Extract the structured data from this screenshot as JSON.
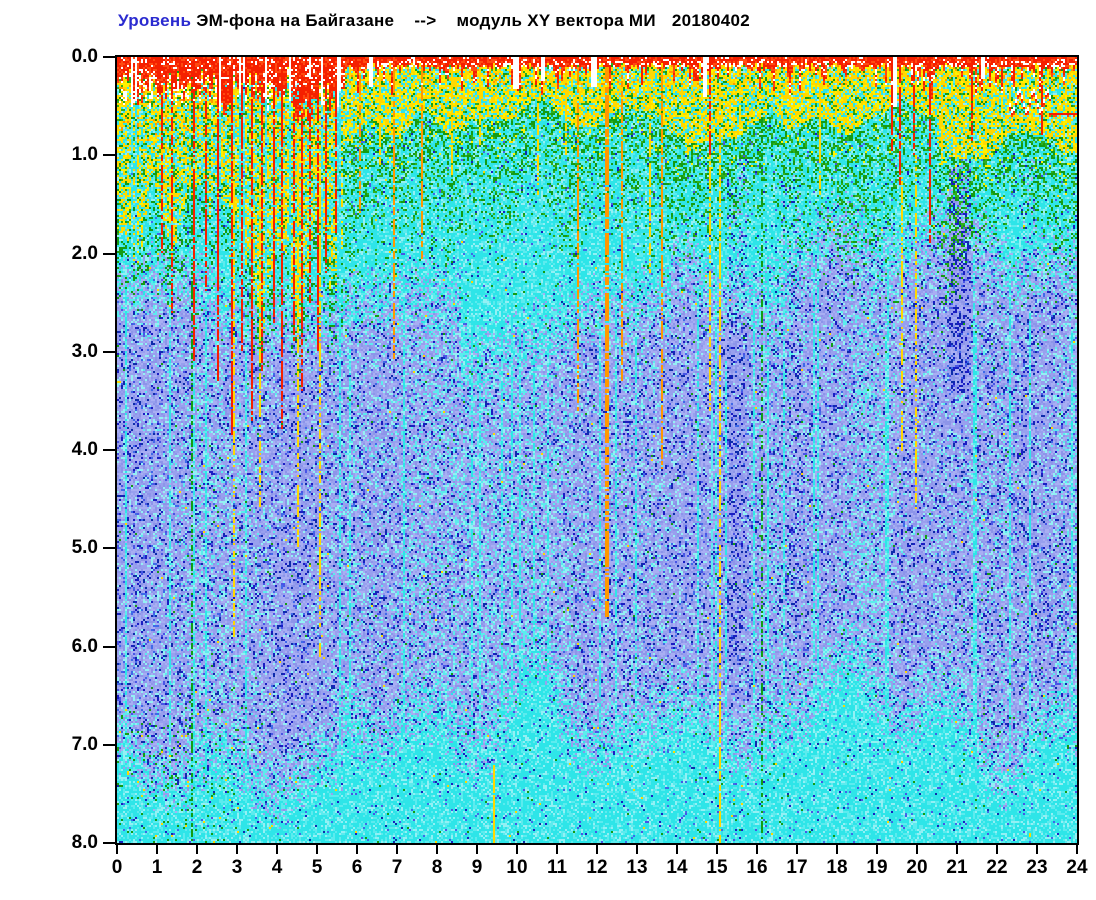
{
  "title": {
    "segments": [
      {
        "text": "Уровень",
        "color": "#2b2bd0"
      },
      {
        "text": "ЭМ-фона на Байгазане",
        "color": "#000000"
      },
      {
        "text": "-->",
        "color": "#000000"
      },
      {
        "text": "модуль XY вектора МИ",
        "color": "#000000"
      },
      {
        "text": "20180402",
        "color": "#000000"
      }
    ],
    "full_text": "Уровень ЭМ-фона на Байгазане --> модуль XY вектора МИ 20180402"
  },
  "axes": {
    "x": {
      "min": 0,
      "max": 24,
      "step": 1,
      "labels": [
        "0",
        "1",
        "2",
        "3",
        "4",
        "5",
        "6",
        "7",
        "8",
        "9",
        "10",
        "11",
        "12",
        "13",
        "14",
        "15",
        "16",
        "17",
        "18",
        "19",
        "20",
        "21",
        "22",
        "23",
        "24"
      ]
    },
    "y": {
      "min": 0,
      "max": 8,
      "step": 1,
      "inverted": true,
      "labels": [
        "0.0",
        "1.0",
        "2.0",
        "3.0",
        "4.0",
        "5.0",
        "6.0",
        "7.0",
        "8.0"
      ]
    }
  },
  "chart_data": {
    "type": "heatmap",
    "title": "Уровень ЭМ-фона на Байгазане --> модуль XY вектора МИ 20180402",
    "date": "20180402",
    "station": "Байгазан",
    "quantity": "модуль XY вектора МИ",
    "xlabel": "",
    "ylabel": "",
    "x_range": [
      0,
      24
    ],
    "y_range": [
      0,
      8
    ],
    "y_inverted": true,
    "grid": false,
    "legend": "none",
    "seed": 20180402,
    "palette": {
      "red": "#f52000",
      "red2": "#ff4a10",
      "orange": "#ff9800",
      "yellow": "#ffd800",
      "yellow2": "#fdf200",
      "green": "#149c14",
      "green2": "#2fae1e",
      "cyan": "#2ee5e8",
      "cyan2": "#5cebee",
      "cyan3": "#93f0f4",
      "peri1": "#98a0ee",
      "peri2": "#a8aef3",
      "peri3": "#8d95e9",
      "medblue": "#4955e5",
      "medblue2": "#3f6ae8",
      "navy": "#1a1ec2",
      "navy2": "#0d2cab",
      "white": "#ffffff"
    },
    "regimes": [
      {
        "name": "storm",
        "h0": 0,
        "h1": 5.65,
        "description": "disturbed interval: tall red spikes 0-0.6 over white, deep yellow columns to 1.5-2.4, green tails, many vertical cyan/red streaks"
      },
      {
        "name": "calm",
        "h0": 5.65,
        "h1": 24,
        "description": "thin solid red cap 0-0.1, dense yellow speckle to ~0.5-0.9, green speckle to ~1.8, cyan to ~2.8, blue-violet cloud with navy speckle 2.8-7, cyan near bottom"
      }
    ],
    "bands": [
      {
        "depth_range": [
          0,
          0.1
        ],
        "color": "red"
      },
      {
        "depth_range": [
          0.1,
          0.8
        ],
        "color": "yellow/orange speckle"
      },
      {
        "depth_range": [
          0.4,
          1.8
        ],
        "color": "green speckle fading"
      },
      {
        "depth_range": [
          1.8,
          2.8
        ],
        "color": "cyan"
      },
      {
        "depth_range": [
          2.8,
          7.0
        ],
        "color": "blue-violet cloud with navy dots"
      },
      {
        "depth_range": [
          7.0,
          8.0
        ],
        "color": "cyan with sparse blue dots"
      }
    ],
    "streaks": [
      [
        1.08,
        "red",
        0.3,
        2.0,
        1,
        0.8
      ],
      [
        1.35,
        "red",
        0.2,
        2.6,
        1,
        0.8
      ],
      [
        1.9,
        "red",
        0.1,
        3.1,
        1,
        0.85
      ],
      [
        2.18,
        "red",
        0.3,
        2.4,
        1,
        0.8
      ],
      [
        2.5,
        "red",
        0.2,
        3.3,
        1,
        0.85
      ],
      [
        2.85,
        "red",
        0.15,
        3.9,
        1,
        0.85
      ],
      [
        3.1,
        "red",
        0.2,
        3.0,
        1,
        0.8
      ],
      [
        3.35,
        "red",
        0.1,
        3.7,
        1,
        0.85
      ],
      [
        3.62,
        "red",
        0.2,
        3.2,
        1,
        0.8
      ],
      [
        3.9,
        "red",
        0.3,
        2.7,
        1,
        0.8
      ],
      [
        4.12,
        "red",
        0.15,
        3.8,
        1,
        0.85
      ],
      [
        4.38,
        "red",
        0.2,
        2.9,
        1,
        0.8
      ],
      [
        4.6,
        "red",
        0.25,
        3.4,
        1,
        0.85
      ],
      [
        4.82,
        "red",
        0.2,
        2.5,
        1,
        0.8
      ],
      [
        5.02,
        "red",
        0.3,
        3.0,
        1,
        0.85
      ],
      [
        5.22,
        "red",
        0.2,
        2.2,
        1,
        0.8
      ],
      [
        5.45,
        "red",
        0.25,
        1.8,
        1,
        0.8
      ],
      [
        1.86,
        "green",
        0.2,
        8,
        1,
        0.5
      ],
      [
        2.92,
        "yellow",
        0.9,
        5.9,
        1,
        0.7
      ],
      [
        3.55,
        "yellow",
        1.1,
        4.6,
        1,
        0.7
      ],
      [
        4.5,
        "yellow",
        1.0,
        5.0,
        1,
        0.7
      ],
      [
        5.06,
        "yellow",
        1.2,
        6.1,
        1,
        0.7
      ],
      [
        6.07,
        "orange",
        0.1,
        1.6,
        1,
        0.8
      ],
      [
        6.55,
        "yellow",
        0.1,
        1.1,
        1,
        0.8
      ],
      [
        6.92,
        "orange",
        0.1,
        3.1,
        1,
        0.8
      ],
      [
        7.6,
        "orange",
        0.1,
        2.1,
        1,
        0.8
      ],
      [
        8.33,
        "yellow",
        0.1,
        1.2,
        1,
        0.8
      ],
      [
        9.05,
        "yellow",
        0.1,
        0.9,
        1,
        0.8
      ],
      [
        9.38,
        "yellow",
        7.2,
        8,
        1,
        0.9
      ],
      [
        10.5,
        "yellow",
        0.1,
        1.4,
        1,
        0.8
      ],
      [
        11.2,
        "yellow",
        0.1,
        1.0,
        1,
        0.8
      ],
      [
        11.5,
        "orange",
        0.1,
        3.6,
        1,
        0.8
      ],
      [
        12.2,
        "orange",
        0.1,
        5.7,
        2,
        0.85
      ],
      [
        12.62,
        "orange",
        0.1,
        3.3,
        1,
        0.8
      ],
      [
        13.3,
        "yellow",
        0.1,
        2.2,
        1,
        0.8
      ],
      [
        13.62,
        "orange",
        0.1,
        4.2,
        1,
        0.8
      ],
      [
        14.8,
        "red",
        0.0,
        1.0,
        1,
        0.9
      ],
      [
        14.82,
        "yellow",
        1.0,
        3.6,
        1,
        0.7
      ],
      [
        14.85,
        "cyan2",
        3.6,
        7.0,
        1,
        0.8
      ],
      [
        15.07,
        "yellow",
        0.3,
        8,
        1,
        0.75
      ],
      [
        16.12,
        "green",
        0.5,
        8,
        1,
        0.5
      ],
      [
        17.55,
        "yellow",
        0.1,
        1.4,
        1,
        0.8
      ],
      [
        19.35,
        "red",
        0.0,
        0.95,
        1,
        0.9
      ],
      [
        19.55,
        "red",
        0.0,
        1.3,
        1,
        0.9
      ],
      [
        19.6,
        "yellow",
        1.2,
        4.0,
        1,
        0.7
      ],
      [
        19.92,
        "red",
        0.0,
        1.0,
        1,
        0.9
      ],
      [
        19.95,
        "yellow",
        1.0,
        4.6,
        1,
        0.7
      ],
      [
        20.28,
        "red",
        0.0,
        1.9,
        1,
        0.85
      ],
      [
        20.6,
        "yellow",
        0.2,
        1.1,
        1,
        0.8
      ],
      [
        21.35,
        "red",
        0.0,
        0.85,
        1,
        0.85
      ],
      [
        23.12,
        "red",
        0.0,
        0.8,
        1,
        0.85
      ]
    ],
    "dark_columns": [
      [
        15.25,
        15.72,
        1.0,
        6.2,
        0.3
      ],
      [
        16.55,
        17.05,
        1.2,
        6.0,
        0.22
      ],
      [
        20.82,
        21.28,
        0.8,
        3.4,
        0.6
      ],
      [
        22.6,
        22.95,
        1.0,
        5.0,
        0.18
      ]
    ],
    "white_gaps": [
      [
        6.32,
        0.06,
        0.3
      ],
      [
        9.95,
        0.1,
        0.32
      ],
      [
        10.6,
        0.05,
        0.25
      ],
      [
        11.9,
        0.06,
        0.3
      ],
      [
        14.68,
        0.08,
        0.4
      ],
      [
        19.42,
        0.1,
        0.5
      ],
      [
        21.6,
        0.05,
        0.22
      ]
    ],
    "squiggle": {
      "h0": 22.28,
      "h1": 23.32,
      "d_mid": 0.47,
      "amp": 0.1,
      "waves": 3,
      "flat_h1": 24,
      "flat_d": 0.56
    }
  }
}
